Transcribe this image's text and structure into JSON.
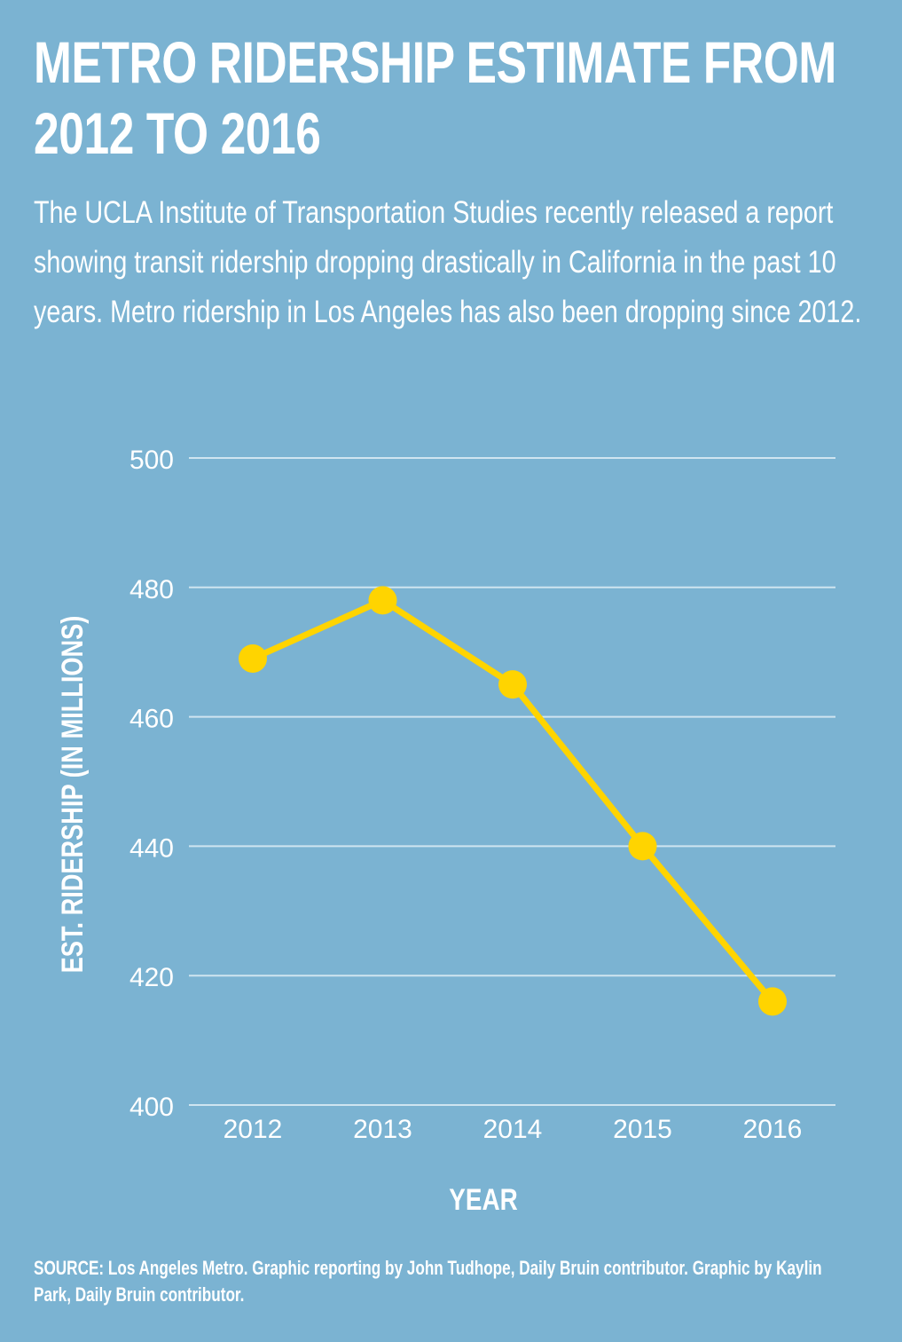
{
  "header": {
    "title_line1": "METRO RIDERSHIP ESTIMATE FROM",
    "title_line2": "2012 TO 2016",
    "description": "The UCLA Institute of Transportation Studies recently released a report showing transit ridership dropping drastically in California in the past 10 years. Metro ridership in Los Angeles has also been dropping since 2012."
  },
  "chart_data": {
    "type": "line",
    "title": "METRO RIDERSHIP ESTIMATE FROM 2012 TO 2016",
    "categories": [
      "2012",
      "2013",
      "2014",
      "2015",
      "2016"
    ],
    "series": [
      {
        "name": "Est. ridership",
        "values": [
          469,
          478,
          465,
          440,
          416
        ]
      }
    ],
    "xlabel": "YEAR",
    "ylabel": "EST. RIDERSHIP (IN MILLIONS)",
    "ylim": [
      400,
      500
    ],
    "yticks": [
      400,
      420,
      440,
      460,
      480,
      500
    ],
    "grid": true,
    "legend": "none"
  },
  "colors": {
    "background": "#7bb3d2",
    "line": "#ffd400",
    "grid": "#cfe4f0",
    "text": "#ffffff"
  },
  "footer": {
    "source": "SOURCE: Los Angeles Metro. Graphic reporting by John Tudhope, Daily Bruin contributor. Graphic by Kaylin Park, Daily Bruin contributor."
  }
}
